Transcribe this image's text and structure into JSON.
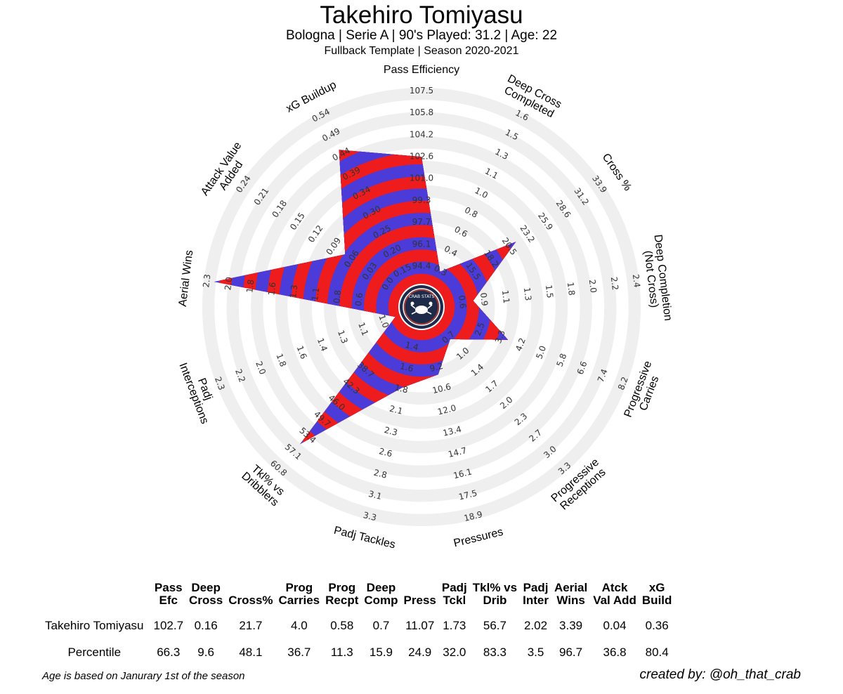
{
  "header": {
    "title": "Takehiro Tomiyasu",
    "subtitle": "Bologna  | Serie A | 90's Played: 31.2 | Age: 22",
    "template": "Fullback Template | Season 2020-2021"
  },
  "logo_text": "CRAB STATS",
  "colors": {
    "band_a": "#ee1c1c",
    "band_b": "#4b3bd9",
    "ring": "#efefef",
    "logo": "#1e2a4a"
  },
  "chart_data": {
    "type": "radar",
    "axes": [
      {
        "label": "Pass Efficiency",
        "ticks": [
          "94.4",
          "96.1",
          "97.7",
          "99.3",
          "101.0",
          "102.6",
          "104.2",
          "105.8",
          "107.5"
        ],
        "percentile": 66.3
      },
      {
        "label": "Deep Cross Completed",
        "ticks": [
          "0.3",
          "0.4",
          "0.6",
          "0.8",
          "1.0",
          "1.1",
          "1.3",
          "1.5",
          "1.6"
        ],
        "percentile": 9.6
      },
      {
        "label": "Cross %",
        "ticks": [
          "15.5",
          "18.2",
          "20.5",
          "23.2",
          "25.9",
          "28.6",
          "31.2",
          "33.9"
        ],
        "percentile": 48.1
      },
      {
        "label": "Deep Completion (Not Cross)",
        "ticks": [
          "0.6",
          "0.9",
          "1.1",
          "1.3",
          "1.5",
          "1.8",
          "2.0",
          "2.2",
          "2.4"
        ],
        "percentile": 15.9
      },
      {
        "label": "Progressive Carries",
        "ticks": [
          "2.5",
          "3.3",
          "4.2",
          "5.0",
          "5.8",
          "6.6",
          "7.4",
          "8.2"
        ],
        "percentile": 36.7
      },
      {
        "label": "Progressive Receptions",
        "ticks": [
          "0.7",
          "1.0",
          "1.4",
          "1.7",
          "2.0",
          "2.3",
          "2.7",
          "3.0",
          "3.3"
        ],
        "percentile": 11.3
      },
      {
        "label": "Pressures",
        "ticks": [
          "9.2",
          "10.6",
          "12.0",
          "13.4",
          "14.7",
          "16.1",
          "17.5",
          "18.9"
        ],
        "percentile": 24.9
      },
      {
        "label": "Padj Tackles",
        "ticks": [
          "1.4",
          "1.6",
          "1.8",
          "2.1",
          "2.3",
          "2.6",
          "2.8",
          "3.1",
          "3.3"
        ],
        "percentile": 32.0
      },
      {
        "label": "Tkl% vs Dribblers",
        "ticks": [
          "38.7",
          "42.3",
          "46.0",
          "49.7",
          "53.4",
          "57.1",
          "60.8"
        ],
        "percentile": 83.3
      },
      {
        "label": "Padj Interceptions",
        "ticks": [
          "1.0",
          "1.1",
          "1.3",
          "1.4",
          "1.6",
          "1.8",
          "2.0",
          "2.2",
          "2.3"
        ],
        "percentile": 3.5
      },
      {
        "label": "Aerial Wins",
        "ticks": [
          "0.6",
          "0.8",
          "1.1",
          "1.3",
          "1.6",
          "1.8",
          "2.0",
          "2.3"
        ],
        "percentile": 96.7
      },
      {
        "label": "Attack Value Added",
        "ticks": [
          "0.0",
          "0.03",
          "0.06",
          "0.09",
          "0.12",
          "0.15",
          "0.18",
          "0.21",
          "0.24"
        ],
        "percentile": 36.8
      },
      {
        "label": "xG Buildup",
        "ticks": [
          "0.15",
          "0.20",
          "0.25",
          "0.30",
          "0.34",
          "0.39",
          "0.44",
          "0.49",
          "0.54"
        ],
        "percentile": 80.4
      }
    ]
  },
  "table": {
    "headers": [
      "Pass\nEfc",
      "Deep\nCross",
      "Cross%",
      "Prog\nCarries",
      "Prog\nRecpt",
      "Deep\nComp",
      "Press",
      "Padj\nTckl",
      "Tkl% vs\nDrib",
      "Padj\nInter",
      "Aerial\nWins",
      "Atck\nVal Add",
      "xG\nBuild"
    ],
    "rows": [
      {
        "label": "Takehiro Tomiyasu",
        "values": [
          "102.7",
          "0.16",
          "21.7",
          "4.0",
          "0.58",
          "0.7",
          "11.07",
          "1.73",
          "56.7",
          "2.02",
          "3.39",
          "0.04",
          "0.36"
        ]
      },
      {
        "label": "Percentile",
        "values": [
          "66.3",
          "9.6",
          "48.1",
          "36.7",
          "11.3",
          "15.9",
          "24.9",
          "32.0",
          "83.3",
          "3.5",
          "96.7",
          "36.8",
          "80.4"
        ]
      }
    ]
  },
  "footnote": "Age is based on Janurary 1st of the season",
  "credit": "created by: @oh_that_crab"
}
